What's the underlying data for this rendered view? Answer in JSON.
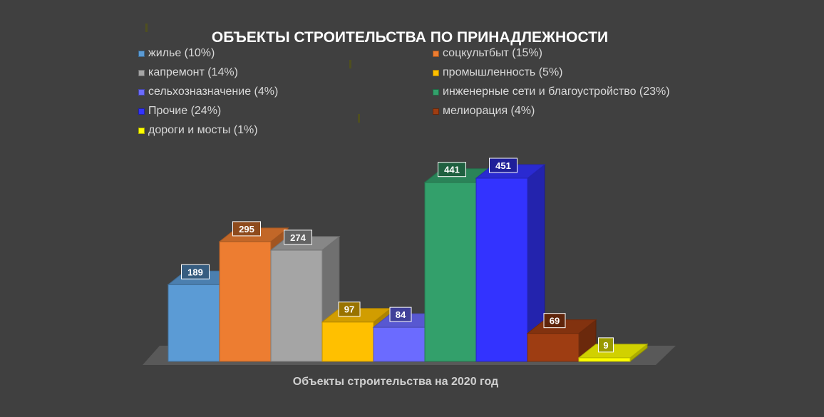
{
  "chart_data": {
    "type": "bar",
    "title": "ОБЪЕКТЫ СТРОИТЕЛЬСТВА ПО ПРИНАДЛЕЖНОСТИ",
    "xlabel": "Объекты строительства на 2020 год",
    "ylabel": "",
    "ylim": [
      0,
      451
    ],
    "grid": false,
    "legend_position": "top",
    "categories": [
      "жилье",
      "соцкультбыт",
      "капремонт",
      "промышленность",
      "сельхозназначение",
      "инженерные сети и благоустройство",
      "Прочие",
      "мелиорация",
      "дороги и мосты"
    ],
    "series": [
      {
        "values": [
          189,
          295,
          274,
          97,
          84,
          441,
          451,
          69,
          9
        ]
      }
    ],
    "data_labels": [
      "189",
      "295",
      "274",
      "97",
      "84",
      "441",
      "451",
      "69",
      "9"
    ],
    "legend": [
      {
        "label": "жилье (10%)",
        "color": "#5b9bd5"
      },
      {
        "label": "соцкультбыт (15%)",
        "color": "#ed7d31"
      },
      {
        "label": "капремонт (14%)",
        "color": "#a5a5a5"
      },
      {
        "label": "промышленность (5%)",
        "color": "#ffc000"
      },
      {
        "label": "сельхозназначение (4%)",
        "color": "#6b6bff"
      },
      {
        "label": "инженерные сети и благоустройство (23%)",
        "color": "#33a06b"
      },
      {
        "label": "Прочие (24%)",
        "color": "#3333ff"
      },
      {
        "label": "мелиорация (4%)",
        "color": "#9e3d12"
      },
      {
        "label": "дороги и мосты (1%)",
        "color": "#ffff00"
      }
    ],
    "colors": [
      "#5b9bd5",
      "#ed7d31",
      "#a5a5a5",
      "#ffc000",
      "#6b6bff",
      "#33a06b",
      "#3333ff",
      "#9e3d12",
      "#ffff00"
    ]
  }
}
